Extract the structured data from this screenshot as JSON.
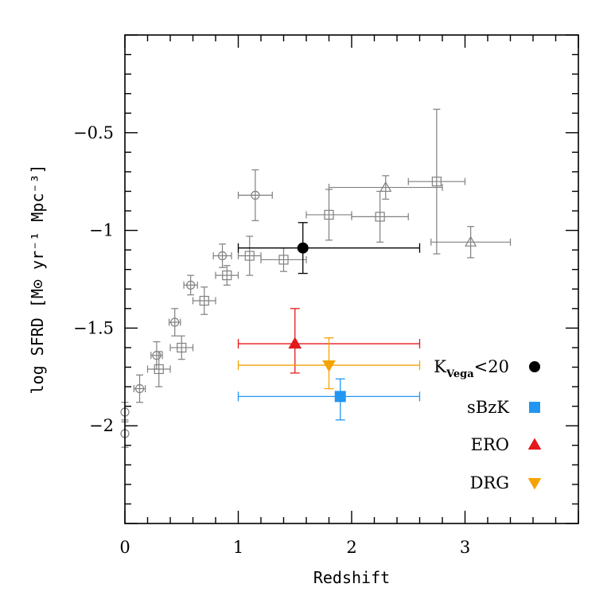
{
  "chart_data": {
    "type": "scatter",
    "xlabel": "Redshift",
    "ylabel": "log SFRD [M⊙ yr⁻¹ Mpc⁻³]",
    "xlim": [
      0,
      4
    ],
    "ylim": [
      -2.5,
      0
    ],
    "x_ticks": [
      0,
      1,
      2,
      3
    ],
    "y_ticks": [
      -2,
      -1.5,
      -1,
      -0.5
    ],
    "x_tick_labels": [
      "0",
      "1",
      "2",
      "3"
    ],
    "y_tick_labels": [
      "−2",
      "−1.5",
      "−1",
      "−0.5"
    ],
    "grid": false,
    "legend_position": "bottom-right",
    "colors": {
      "reference": "#808080",
      "kvega": "#000000",
      "sbzk": "#2196f3",
      "ero": "#e31a1c",
      "drg": "#f5a300"
    },
    "legend": [
      {
        "key": "kvega",
        "label_main": "K",
        "label_sub": "Vega",
        "label_suffix": "<20",
        "marker": "filled-circle"
      },
      {
        "key": "sbzk",
        "label_main": "sBzK",
        "label_sub": "",
        "label_suffix": "",
        "marker": "filled-square"
      },
      {
        "key": "ero",
        "label_main": "ERO",
        "label_sub": "",
        "label_suffix": "",
        "marker": "filled-triangle-up"
      },
      {
        "key": "drg",
        "label_main": "DRG",
        "label_sub": "",
        "label_suffix": "",
        "marker": "filled-triangle-down"
      }
    ],
    "series": [
      {
        "marker": "open-circle",
        "color_key": "reference",
        "points": [
          {
            "x": 0.0,
            "y": -1.93,
            "xerr": [
              0,
              0
            ],
            "yerr": [
              0.05,
              0.05
            ]
          },
          {
            "x": 0.0,
            "y": -2.04,
            "xerr": [
              0,
              0
            ],
            "yerr": [
              0.07,
              0.07
            ]
          },
          {
            "x": 0.13,
            "y": -1.81,
            "xerr": [
              0.05,
              0.05
            ],
            "yerr": [
              0.07,
              0.07
            ]
          },
          {
            "x": 0.28,
            "y": -1.64,
            "xerr": [
              0.05,
              0.05
            ],
            "yerr": [
              0.07,
              0.07
            ]
          },
          {
            "x": 0.44,
            "y": -1.47,
            "xerr": [
              0.05,
              0.05
            ],
            "yerr": [
              0.07,
              0.07
            ]
          },
          {
            "x": 0.58,
            "y": -1.28,
            "xerr": [
              0.06,
              0.06
            ],
            "yerr": [
              0.05,
              0.05
            ]
          },
          {
            "x": 0.86,
            "y": -1.13,
            "xerr": [
              0.08,
              0.08
            ],
            "yerr": [
              0.06,
              0.06
            ]
          },
          {
            "x": 1.15,
            "y": -0.82,
            "xerr": [
              0.15,
              0.15
            ],
            "yerr": [
              0.13,
              0.13
            ]
          }
        ]
      },
      {
        "marker": "open-square",
        "color_key": "reference",
        "points": [
          {
            "x": 0.3,
            "y": -1.71,
            "xerr": [
              0.1,
              0.1
            ],
            "yerr": [
              0.09,
              0.09
            ]
          },
          {
            "x": 0.5,
            "y": -1.6,
            "xerr": [
              0.1,
              0.1
            ],
            "yerr": [
              0.06,
              0.06
            ]
          },
          {
            "x": 0.7,
            "y": -1.36,
            "xerr": [
              0.1,
              0.1
            ],
            "yerr": [
              0.07,
              0.07
            ]
          },
          {
            "x": 0.9,
            "y": -1.23,
            "xerr": [
              0.1,
              0.1
            ],
            "yerr": [
              0.05,
              0.05
            ]
          },
          {
            "x": 1.1,
            "y": -1.13,
            "xerr": [
              0.1,
              0.1
            ],
            "yerr": [
              0.1,
              0.1
            ]
          },
          {
            "x": 1.4,
            "y": -1.15,
            "xerr": [
              0.2,
              0.2
            ],
            "yerr": [
              0.06,
              0.06
            ]
          },
          {
            "x": 1.8,
            "y": -0.92,
            "xerr": [
              0.2,
              0.2
            ],
            "yerr": [
              0.13,
              0.13
            ]
          },
          {
            "x": 2.25,
            "y": -0.93,
            "xerr": [
              0.25,
              0.25
            ],
            "yerr": [
              0.13,
              0.13
            ]
          },
          {
            "x": 2.75,
            "y": -0.75,
            "xerr": [
              0.25,
              0.25
            ],
            "yerr": [
              0.37,
              0.37
            ]
          }
        ]
      },
      {
        "marker": "open-triangle-up",
        "color_key": "reference",
        "points": [
          {
            "x": 2.3,
            "y": -0.78,
            "xerr": [
              0.5,
              0.5
            ],
            "yerr": [
              0.06,
              0.06
            ]
          },
          {
            "x": 3.05,
            "y": -1.06,
            "xerr": [
              0.35,
              0.35
            ],
            "yerr": [
              0.08,
              0.08
            ]
          }
        ]
      },
      {
        "marker": "filled-circle",
        "color_key": "kvega",
        "points": [
          {
            "x": 1.57,
            "y": -1.09,
            "xerr": [
              0.57,
              1.03
            ],
            "yerr": [
              0.13,
              0.13
            ]
          }
        ]
      },
      {
        "marker": "filled-square",
        "color_key": "sbzk",
        "points": [
          {
            "x": 1.9,
            "y": -1.85,
            "xerr": [
              0.9,
              0.7
            ],
            "yerr": [
              0.12,
              0.09
            ]
          }
        ]
      },
      {
        "marker": "filled-triangle-up",
        "color_key": "ero",
        "points": [
          {
            "x": 1.5,
            "y": -1.58,
            "xerr": [
              0.5,
              1.1
            ],
            "yerr": [
              0.15,
              0.18
            ]
          }
        ]
      },
      {
        "marker": "filled-triangle-down",
        "color_key": "drg",
        "points": [
          {
            "x": 1.8,
            "y": -1.69,
            "xerr": [
              0.8,
              0.8
            ],
            "yerr": [
              0.12,
              0.14
            ]
          }
        ]
      }
    ]
  }
}
